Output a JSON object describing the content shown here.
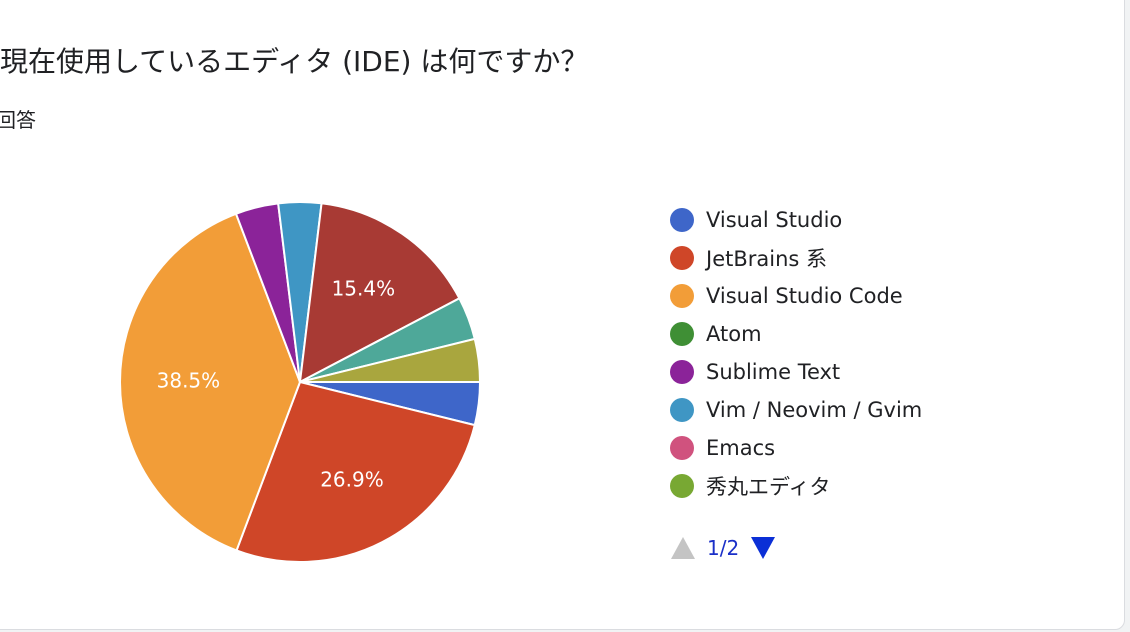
{
  "question": {
    "title": "現在使用しているエディタ (IDE) は何ですか？",
    "subtitle": "回答"
  },
  "legend_icons": {
    "prev": "triangle-up-icon",
    "next": "triangle-down-icon"
  },
  "pager": {
    "page": "1/2"
  },
  "chart_data": {
    "type": "pie",
    "legend_position": "right",
    "slices": [
      {
        "name": "Visual Studio",
        "value": 3.85,
        "color": "#3e66c9",
        "label": ""
      },
      {
        "name": "JetBrains 系",
        "value": 26.9,
        "color": "#cf4628",
        "label": "26.9%"
      },
      {
        "name": "Visual Studio Code",
        "value": 38.5,
        "color": "#f29d38",
        "label": "38.5%"
      },
      {
        "name": "Sublime Text",
        "value": 3.85,
        "color": "#8b2399",
        "label": ""
      },
      {
        "name": "Vim / Neovim / Gvim",
        "value": 3.85,
        "color": "#3f96c4",
        "label": ""
      },
      {
        "name": "",
        "value": 15.4,
        "color": "#a83a34",
        "label": "15.4%"
      },
      {
        "name": "",
        "value": 3.85,
        "color": "#4ea899",
        "label": ""
      },
      {
        "name": "",
        "value": 3.85,
        "color": "#a9a63e",
        "label": ""
      }
    ],
    "legend": [
      {
        "name": "Visual Studio",
        "color": "#3e66c9"
      },
      {
        "name": "JetBrains 系",
        "color": "#cf4628"
      },
      {
        "name": "Visual Studio Code",
        "color": "#f29d38"
      },
      {
        "name": "Atom",
        "color": "#3f8f35"
      },
      {
        "name": "Sublime Text",
        "color": "#8b2399"
      },
      {
        "name": "Vim / Neovim / Gvim",
        "color": "#3f96c4"
      },
      {
        "name": "Emacs",
        "color": "#d0527e"
      },
      {
        "name": "秀丸エディタ",
        "color": "#78a833"
      }
    ]
  }
}
